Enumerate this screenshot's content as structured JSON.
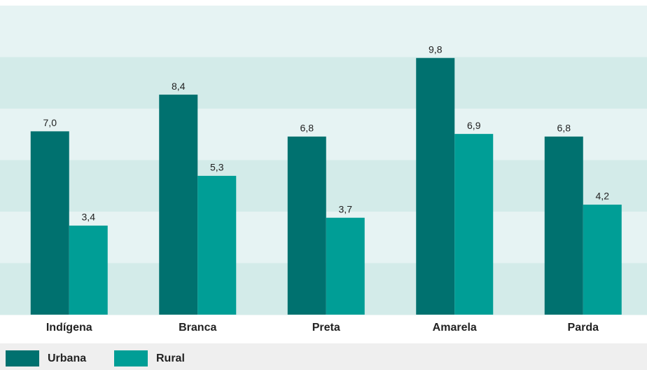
{
  "chart_data": {
    "type": "bar",
    "categories": [
      "Indígena",
      "Branca",
      "Preta",
      "Amarela",
      "Parda"
    ],
    "series": [
      {
        "name": "Urbana",
        "color": "#00716f",
        "values": [
          7.0,
          8.4,
          6.8,
          9.8,
          6.8
        ],
        "value_labels": [
          "7,0",
          "8,4",
          "6,8",
          "9,8",
          "6,8"
        ]
      },
      {
        "name": "Rural",
        "color": "#009e96",
        "values": [
          3.4,
          5.3,
          3.7,
          6.9,
          4.2
        ],
        "value_labels": [
          "3,4",
          "5,3",
          "3,7",
          "6,9",
          "4,2"
        ]
      }
    ],
    "ylim": [
      0,
      11.8
    ]
  }
}
